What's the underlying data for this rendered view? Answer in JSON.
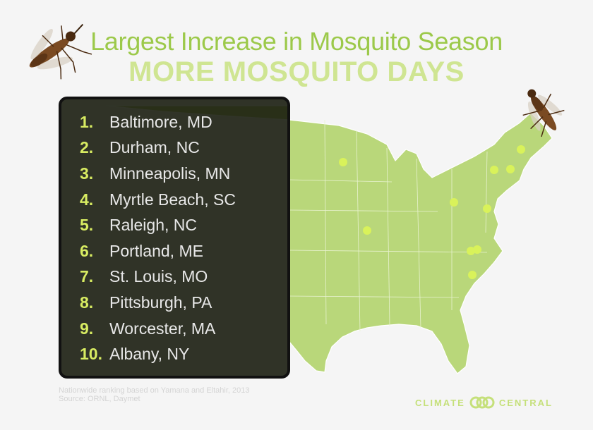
{
  "header": {
    "title": "Largest Increase in Mosquito Season",
    "subtitle": "MORE MOSQUITO DAYS"
  },
  "ranking": [
    {
      "rank": "1.",
      "city": "Baltimore, MD"
    },
    {
      "rank": "2.",
      "city": "Durham, NC"
    },
    {
      "rank": "3.",
      "city": "Minneapolis, MN"
    },
    {
      "rank": "4.",
      "city": "Myrtle Beach, SC"
    },
    {
      "rank": "5.",
      "city": "Raleigh, NC"
    },
    {
      "rank": "6.",
      "city": "Portland, ME"
    },
    {
      "rank": "7.",
      "city": "St. Louis, MO"
    },
    {
      "rank": "8.",
      "city": "Pittsburgh, PA"
    },
    {
      "rank": "9.",
      "city": "Worcester, MA"
    },
    {
      "rank": "10.",
      "city": "Albany, NY"
    }
  ],
  "source": {
    "line1": "Nationwide ranking based on Yamana and Eltahir, 2013",
    "line2": "Source: ORNL, Daymet"
  },
  "logo": {
    "left": "CLIMATE",
    "right": "CENTRAL"
  },
  "colors": {
    "title": "#9cc94a",
    "subtitle": "#cfe592",
    "map_fill": "#b9d77a",
    "city_marker": "#d9f25a",
    "rank_number": "#d8ec62"
  },
  "icons": [
    "mosquito-icon",
    "climate-central-logo-icon"
  ]
}
